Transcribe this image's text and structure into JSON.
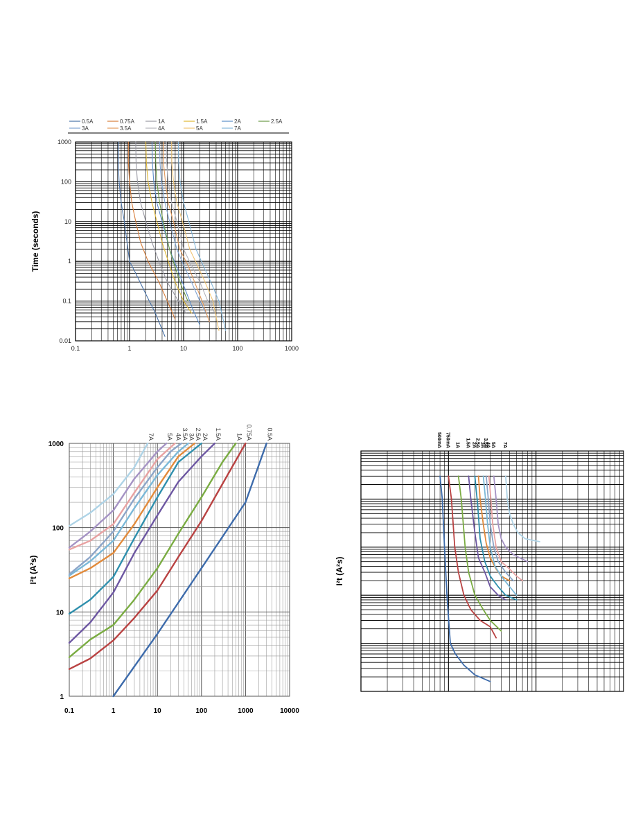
{
  "chart_data": [
    {
      "type": "line",
      "id": "time-current",
      "ylabel": "Time (seconds)",
      "xlabel": "",
      "xscale": "log",
      "yscale": "log",
      "xlim": [
        0.1,
        1000
      ],
      "ylim": [
        0.01,
        1000
      ],
      "xticks": [
        "0.1",
        "1",
        "10",
        "100",
        "1000"
      ],
      "yticks": [
        "0.01",
        "0.1",
        "1",
        "10",
        "100",
        "1000"
      ],
      "grid": true,
      "legend_position": "top",
      "series": [
        {
          "name": "0.5A",
          "color": "#4a73a8",
          "x": [
            0.62,
            0.62,
            0.64,
            0.7,
            0.8,
            1.0,
            1.3,
            2.0,
            3.0,
            4.5
          ],
          "y": [
            1000,
            300,
            100,
            30,
            10,
            1,
            0.5,
            0.15,
            0.05,
            0.013
          ]
        },
        {
          "name": "0.75A",
          "color": "#d77d3a",
          "x": [
            0.95,
            0.95,
            1.0,
            1.1,
            1.3,
            1.6,
            2.2,
            3.5,
            5.0,
            7.0
          ],
          "y": [
            1000,
            300,
            100,
            30,
            10,
            3,
            1,
            0.3,
            0.1,
            0.035
          ]
        },
        {
          "name": "1A",
          "color": "#9a9aa4",
          "x": [
            1.3,
            1.32,
            1.4,
            1.6,
            2.0,
            2.6,
            3.5,
            5.0,
            8.0,
            11.0
          ],
          "y": [
            1000,
            300,
            100,
            30,
            10,
            3,
            1,
            0.3,
            0.1,
            0.05
          ]
        },
        {
          "name": "1.5A",
          "color": "#e0b832",
          "x": [
            2.0,
            2.05,
            2.2,
            2.6,
            3.2,
            4.0,
            5.2,
            7.0,
            10.0,
            14.0
          ],
          "y": [
            1000,
            300,
            100,
            30,
            10,
            3,
            1,
            0.3,
            0.1,
            0.05
          ]
        },
        {
          "name": "2A",
          "color": "#5b8ec9",
          "x": [
            2.6,
            2.65,
            2.8,
            3.2,
            4.0,
            5.5,
            7.5,
            10.0,
            15.0,
            20.0
          ],
          "y": [
            1000,
            300,
            100,
            30,
            10,
            2,
            0.7,
            0.25,
            0.06,
            0.025
          ]
        },
        {
          "name": "2.5A",
          "color": "#6a9a45",
          "x": [
            3.0,
            3.05,
            3.2,
            3.6,
            4.2,
            5.5,
            7.0,
            9.0,
            12.0
          ],
          "y": [
            1000,
            300,
            100,
            30,
            10,
            2,
            0.7,
            0.25,
            0.1
          ]
        },
        {
          "name": "3A",
          "color": "#7fa3d2",
          "x": [
            3.6,
            3.65,
            3.9,
            4.5,
            5.5,
            7.5,
            10.0,
            14.0,
            20.0,
            27.0
          ],
          "y": [
            1000,
            300,
            100,
            30,
            10,
            2,
            0.8,
            0.3,
            0.1,
            0.045
          ]
        },
        {
          "name": "3.5A",
          "color": "#e39a5c",
          "x": [
            4.2,
            4.25,
            4.6,
            5.2,
            6.5,
            8.5,
            12.0,
            16.0,
            22.0,
            30.0
          ],
          "y": [
            1000,
            300,
            100,
            30,
            10,
            2,
            0.8,
            0.3,
            0.1,
            0.03
          ]
        },
        {
          "name": "4A",
          "color": "#b3b3bb",
          "x": [
            4.8,
            4.85,
            5.2,
            6.0,
            7.5,
            10.0,
            14.0,
            20.0,
            28.0,
            38.0
          ],
          "y": [
            1000,
            300,
            100,
            30,
            10,
            2,
            0.8,
            0.3,
            0.1,
            0.05
          ]
        },
        {
          "name": "5A",
          "color": "#f0c574",
          "x": [
            6.0,
            6.05,
            6.5,
            7.5,
            9.5,
            13.0,
            18.0,
            25.0,
            35.0,
            45.0
          ],
          "y": [
            1000,
            300,
            100,
            30,
            10,
            2,
            0.8,
            0.3,
            0.1,
            0.018
          ]
        },
        {
          "name": "7A",
          "color": "#86b8da",
          "x": [
            8.0,
            8.1,
            8.6,
            10.0,
            12.5,
            17.0,
            23.0,
            32.0,
            45.0,
            60.0
          ],
          "y": [
            1000,
            300,
            100,
            30,
            10,
            2,
            0.8,
            0.3,
            0.1,
            0.018
          ]
        }
      ]
    },
    {
      "type": "line",
      "id": "i2t-vs-time",
      "ylabel": "I²t (A²s)",
      "xlabel": "",
      "xscale": "log",
      "yscale": "log",
      "xlim": [
        0.1,
        10000
      ],
      "ylim": [
        1,
        1000
      ],
      "xticks": [
        "0.1",
        "1",
        "10",
        "100",
        "1000",
        "10000"
      ],
      "yticks": [
        "1",
        "10",
        "100",
        "1000"
      ],
      "grid": true,
      "series": [
        {
          "name": "0.5A",
          "color": "#3d6bab",
          "x": [
            1.0,
            10.0,
            100.0,
            1000.0,
            3000.0
          ],
          "y": [
            1.0,
            5.5,
            33,
            200,
            1000
          ]
        },
        {
          "name": "0.75A",
          "color": "#b94242",
          "x": [
            0.1,
            0.3,
            1.0,
            3.0,
            10.0,
            30.0,
            100.0,
            300.0,
            1000.0
          ],
          "y": [
            2.1,
            2.8,
            4.6,
            8.5,
            18,
            45,
            120,
            330,
            1000
          ]
        },
        {
          "name": "1A",
          "color": "#7aac42",
          "x": [
            0.1,
            0.3,
            1.0,
            3.0,
            10.0,
            30.0,
            100.0,
            300.0,
            600.0
          ],
          "y": [
            2.9,
            4.7,
            7.0,
            14,
            33,
            85,
            230,
            600,
            1000
          ]
        },
        {
          "name": "1.5A",
          "color": "#6d57a2",
          "x": [
            0.1,
            0.3,
            1.0,
            3.0,
            10.0,
            30.0,
            100.0,
            200.0
          ],
          "y": [
            4.3,
            7.5,
            17,
            50,
            140,
            350,
            700,
            1000
          ]
        },
        {
          "name": "2A",
          "color": "#2e8fad",
          "x": [
            0.1,
            0.3,
            1.0,
            3.0,
            10.0,
            30.0,
            100.0
          ],
          "y": [
            9.5,
            14,
            26,
            75,
            230,
            600,
            1000
          ]
        },
        {
          "name": "2.5A",
          "color": "#e28a3a",
          "x": [
            0.1,
            0.3,
            1.0,
            3.0,
            10.0,
            30.0,
            70.0
          ],
          "y": [
            25,
            33,
            50,
            110,
            300,
            700,
            1000
          ]
        },
        {
          "name": "3A",
          "color": "#7ab8d8",
          "x": [
            0.1,
            0.3,
            1.0,
            3.0,
            10.0,
            30.0,
            50.0
          ],
          "y": [
            27,
            40,
            70,
            170,
            420,
            800,
            1000
          ]
        },
        {
          "name": "3.5A",
          "color": "#8ca5c8",
          "x": [
            0.1,
            0.3,
            1.0,
            3.0,
            10.0,
            20.0,
            35.0
          ],
          "y": [
            28,
            45,
            90,
            220,
            520,
            800,
            1000
          ]
        },
        {
          "name": "4A",
          "color": "#e8a2a2",
          "x": [
            0.1,
            0.3,
            1.0,
            3.0,
            10.0,
            25.0
          ],
          "y": [
            55,
            70,
            110,
            260,
            650,
            1000
          ]
        },
        {
          "name": "5A",
          "color": "#a593c4",
          "x": [
            0.1,
            0.3,
            1.0,
            3.0,
            10.0,
            16.0
          ],
          "y": [
            58,
            90,
            160,
            380,
            800,
            1000
          ]
        },
        {
          "name": "7A",
          "color": "#aed3e6",
          "x": [
            0.1,
            0.3,
            1.0,
            3.0,
            6.0
          ],
          "y": [
            105,
            150,
            250,
            520,
            1000
          ]
        }
      ]
    },
    {
      "type": "line",
      "id": "i2t-vs-current",
      "ylabel": "I²t (A²s)",
      "xlabel": "",
      "xscale": "log",
      "yscale": "log",
      "xlim": [
        1,
        1000
      ],
      "ylim": [
        0.1,
        10000
      ],
      "xticks": [],
      "yticks": [],
      "grid": true,
      "series": [
        {
          "name": "500mA",
          "color": "#3d6bab",
          "x": [
            8.0,
            8.5,
            9.0,
            9.6,
            10.5,
            12.0,
            15.0,
            20.0,
            30.0
          ],
          "y": [
            3000,
            1000,
            100,
            10,
            1.0,
            0.6,
            0.35,
            0.22,
            0.16
          ]
        },
        {
          "name": "750mA",
          "color": "#b94242",
          "x": [
            10.0,
            10.8,
            11.8,
            13.0,
            15.0,
            18.0,
            23.0,
            30.0,
            35.0
          ],
          "y": [
            3000,
            1000,
            100,
            30,
            10,
            5.0,
            3.0,
            2.2,
            1.3
          ]
        },
        {
          "name": "1A",
          "color": "#7aac42",
          "x": [
            13.0,
            14.0,
            15.5,
            17.0,
            20.0,
            25.0,
            30.0,
            40.0
          ],
          "y": [
            3000,
            1000,
            100,
            30,
            10,
            5.0,
            3.0,
            1.8
          ]
        },
        {
          "name": "1.5A",
          "color": "#6d57a2",
          "x": [
            17.0,
            18.0,
            20.0,
            22.0,
            26.0,
            30.0,
            37.0,
            45.0
          ],
          "y": [
            3000,
            1000,
            200,
            60,
            30,
            15,
            10,
            8.0
          ]
        },
        {
          "name": "2A",
          "color": "#2e8fad",
          "x": [
            20.0,
            21.5,
            23.0,
            26.0,
            30.0,
            37.0,
            45.0,
            60.0
          ],
          "y": [
            3000,
            800,
            150,
            50,
            25,
            15,
            10,
            8.0
          ]
        },
        {
          "name": "2.5A",
          "color": "#e28a3a",
          "x": [
            22.0,
            23.0,
            25.0,
            27.0,
            30.0,
            35.0,
            40.0,
            50.0
          ],
          "y": [
            3000,
            1000,
            300,
            120,
            60,
            35,
            25,
            20
          ]
        },
        {
          "name": "3A",
          "color": "#7ab8d8",
          "x": [
            25.0,
            26.5,
            28.0,
            30.0,
            34.0,
            40.0,
            50.0,
            60.0
          ],
          "y": [
            3000,
            1000,
            300,
            100,
            40,
            25,
            15,
            10
          ]
        },
        {
          "name": "3.5A",
          "color": "#8ca5c8",
          "x": [
            27.0,
            28.5,
            30.0,
            33.0,
            37.0,
            45.0,
            55.0
          ],
          "y": [
            3000,
            1000,
            300,
            100,
            50,
            30,
            20
          ]
        },
        {
          "name": "4A",
          "color": "#e8a2a2",
          "x": [
            29.0,
            30.5,
            32.0,
            35.0,
            40.0,
            50.0,
            60.0,
            70.0
          ],
          "y": [
            3000,
            1000,
            300,
            100,
            50,
            35,
            25,
            20
          ]
        },
        {
          "name": "5A",
          "color": "#a593c4",
          "x": [
            33.0,
            35.0,
            37.0,
            40.0,
            45.0,
            55.0,
            65.0,
            80.0
          ],
          "y": [
            3000,
            1000,
            300,
            150,
            100,
            70,
            60,
            50
          ]
        },
        {
          "name": "7A",
          "color": "#aed3e6",
          "x": [
            45.0,
            47.0,
            50.0,
            55.0,
            62.0,
            75.0,
            90.0,
            110.0
          ],
          "y": [
            3000,
            1000,
            500,
            300,
            200,
            150,
            140,
            130
          ]
        }
      ]
    }
  ]
}
